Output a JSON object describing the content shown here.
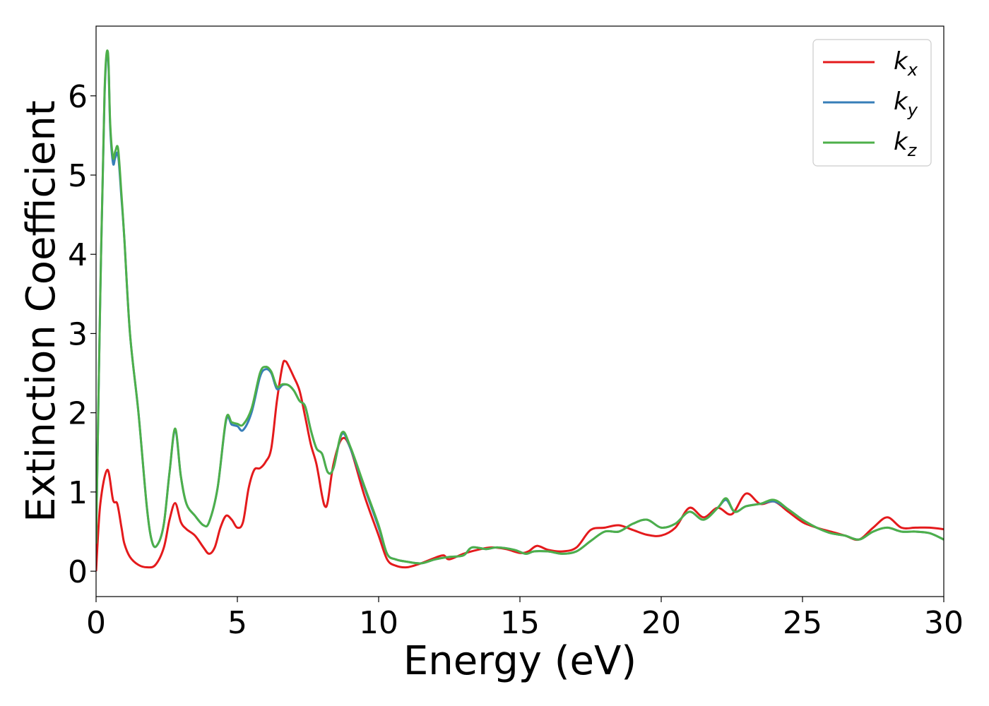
{
  "chart_data": {
    "type": "line",
    "xlabel": "Energy (eV)",
    "ylabel": "Extinction Coefficient",
    "xlim": [
      0,
      30
    ],
    "ylim": [
      -0.32,
      6.88
    ],
    "xticks": [
      0,
      5,
      10,
      15,
      20,
      25,
      30
    ],
    "yticks": [
      0,
      1,
      2,
      3,
      4,
      5,
      6
    ],
    "grid": false,
    "legend_position": "top-right",
    "series": [
      {
        "name": "k_x",
        "label_main": "k",
        "label_sub": "x",
        "color": "#e41a1c",
        "x": [
          0,
          0.15,
          0.4,
          0.6,
          0.75,
          0.9,
          1.0,
          1.2,
          1.5,
          1.8,
          2.1,
          2.4,
          2.6,
          2.8,
          3.0,
          3.2,
          3.5,
          3.8,
          4.0,
          4.2,
          4.4,
          4.6,
          4.8,
          5.0,
          5.2,
          5.4,
          5.6,
          5.8,
          6.0,
          6.2,
          6.4,
          6.6,
          6.7,
          6.8,
          7.0,
          7.2,
          7.4,
          7.6,
          7.8,
          8.0,
          8.1,
          8.2,
          8.4,
          8.7,
          9.0,
          9.5,
          10.0,
          10.3,
          10.6,
          11.0,
          11.5,
          12.0,
          12.3,
          12.5,
          13.0,
          13.5,
          14.0,
          14.5,
          15.0,
          15.3,
          15.6,
          16.0,
          16.5,
          17.0,
          17.5,
          18.0,
          18.5,
          19.0,
          19.5,
          20.0,
          20.5,
          21.0,
          21.5,
          22.0,
          22.5,
          23.0,
          23.5,
          24.0,
          24.5,
          25.0,
          25.5,
          26.0,
          26.5,
          27.0,
          27.5,
          28.0,
          28.5,
          29.0,
          29.5,
          30.0
        ],
        "y": [
          0.0,
          0.85,
          1.28,
          0.9,
          0.85,
          0.55,
          0.35,
          0.18,
          0.08,
          0.05,
          0.08,
          0.3,
          0.65,
          0.86,
          0.62,
          0.53,
          0.45,
          0.3,
          0.22,
          0.3,
          0.55,
          0.7,
          0.65,
          0.55,
          0.62,
          1.05,
          1.28,
          1.3,
          1.38,
          1.55,
          2.15,
          2.6,
          2.65,
          2.6,
          2.45,
          2.28,
          1.95,
          1.6,
          1.35,
          0.95,
          0.82,
          0.88,
          1.35,
          1.67,
          1.55,
          0.95,
          0.45,
          0.15,
          0.07,
          0.05,
          0.1,
          0.17,
          0.2,
          0.15,
          0.22,
          0.27,
          0.3,
          0.28,
          0.23,
          0.25,
          0.32,
          0.27,
          0.25,
          0.3,
          0.52,
          0.55,
          0.58,
          0.52,
          0.46,
          0.45,
          0.55,
          0.8,
          0.68,
          0.8,
          0.72,
          0.98,
          0.85,
          0.88,
          0.75,
          0.62,
          0.55,
          0.5,
          0.45,
          0.4,
          0.55,
          0.68,
          0.55,
          0.55,
          0.55,
          0.53
        ]
      },
      {
        "name": "k_y",
        "label_main": "k",
        "label_sub": "y",
        "color": "#377eb8",
        "x": [
          0,
          0.15,
          0.3,
          0.42,
          0.5,
          0.6,
          0.68,
          0.78,
          0.9,
          1.0,
          1.2,
          1.5,
          1.8,
          2.0,
          2.2,
          2.4,
          2.6,
          2.8,
          3.0,
          3.2,
          3.5,
          3.8,
          4.0,
          4.3,
          4.6,
          4.8,
          5.0,
          5.2,
          5.5,
          5.8,
          6.0,
          6.2,
          6.4,
          6.6,
          6.8,
          7.0,
          7.2,
          7.4,
          7.6,
          7.8,
          8.0,
          8.2,
          8.4,
          8.7,
          9.0,
          9.5,
          10.0,
          10.3,
          10.6,
          11.0,
          11.5,
          12.0,
          12.5,
          13.0,
          13.3,
          13.8,
          14.2,
          14.8,
          15.2,
          15.5,
          16.0,
          16.5,
          17.0,
          17.5,
          18.0,
          18.5,
          19.0,
          19.5,
          20.0,
          20.5,
          21.0,
          21.5,
          22.0,
          22.3,
          22.6,
          23.0,
          23.5,
          24.0,
          24.5,
          25.0,
          25.5,
          26.0,
          26.5,
          27.0,
          27.5,
          28.0,
          28.5,
          29.0,
          29.5,
          30.0
        ],
        "y": [
          0.35,
          3.5,
          6.0,
          6.52,
          5.6,
          5.15,
          5.22,
          5.25,
          4.7,
          4.2,
          3.0,
          2.0,
          0.8,
          0.35,
          0.35,
          0.6,
          1.25,
          1.78,
          1.2,
          0.85,
          0.7,
          0.58,
          0.62,
          1.05,
          1.9,
          1.85,
          1.83,
          1.78,
          2.0,
          2.45,
          2.55,
          2.5,
          2.3,
          2.35,
          2.35,
          2.28,
          2.15,
          2.08,
          1.78,
          1.55,
          1.48,
          1.25,
          1.3,
          1.73,
          1.55,
          1.05,
          0.55,
          0.22,
          0.15,
          0.12,
          0.1,
          0.15,
          0.18,
          0.2,
          0.3,
          0.28,
          0.3,
          0.27,
          0.22,
          0.25,
          0.25,
          0.22,
          0.25,
          0.38,
          0.5,
          0.5,
          0.6,
          0.65,
          0.55,
          0.6,
          0.75,
          0.65,
          0.8,
          0.9,
          0.75,
          0.82,
          0.85,
          0.88,
          0.78,
          0.65,
          0.55,
          0.48,
          0.45,
          0.4,
          0.5,
          0.55,
          0.5,
          0.5,
          0.48,
          0.4
        ]
      },
      {
        "name": "k_z",
        "label_main": "k",
        "label_sub": "z",
        "color": "#4daf4a",
        "x": [
          0,
          0.15,
          0.3,
          0.42,
          0.5,
          0.6,
          0.68,
          0.78,
          0.9,
          1.0,
          1.2,
          1.5,
          1.8,
          2.0,
          2.2,
          2.4,
          2.6,
          2.8,
          3.0,
          3.2,
          3.5,
          3.8,
          4.0,
          4.3,
          4.6,
          4.8,
          5.0,
          5.2,
          5.5,
          5.8,
          6.0,
          6.2,
          6.4,
          6.6,
          6.8,
          7.0,
          7.2,
          7.4,
          7.6,
          7.8,
          8.0,
          8.2,
          8.4,
          8.7,
          9.0,
          9.5,
          10.0,
          10.3,
          10.6,
          11.0,
          11.5,
          12.0,
          12.5,
          13.0,
          13.3,
          13.8,
          14.2,
          14.8,
          15.2,
          15.5,
          16.0,
          16.5,
          17.0,
          17.5,
          18.0,
          18.5,
          19.0,
          19.5,
          20.0,
          20.5,
          21.0,
          21.5,
          22.0,
          22.3,
          22.6,
          23.0,
          23.5,
          24.0,
          24.5,
          25.0,
          25.5,
          26.0,
          26.5,
          27.0,
          27.5,
          28.0,
          28.5,
          29.0,
          29.5,
          30.0
        ],
        "y": [
          0.35,
          3.5,
          6.05,
          6.55,
          5.65,
          5.22,
          5.3,
          5.33,
          4.75,
          4.2,
          3.0,
          2.0,
          0.8,
          0.35,
          0.35,
          0.6,
          1.25,
          1.8,
          1.2,
          0.85,
          0.7,
          0.58,
          0.62,
          1.05,
          1.92,
          1.88,
          1.86,
          1.85,
          2.05,
          2.5,
          2.58,
          2.52,
          2.33,
          2.36,
          2.35,
          2.28,
          2.15,
          2.08,
          1.78,
          1.55,
          1.48,
          1.25,
          1.3,
          1.75,
          1.57,
          1.07,
          0.58,
          0.22,
          0.15,
          0.12,
          0.1,
          0.15,
          0.18,
          0.2,
          0.3,
          0.28,
          0.3,
          0.27,
          0.22,
          0.25,
          0.25,
          0.22,
          0.25,
          0.38,
          0.5,
          0.5,
          0.6,
          0.65,
          0.55,
          0.6,
          0.75,
          0.65,
          0.8,
          0.92,
          0.75,
          0.82,
          0.85,
          0.9,
          0.78,
          0.65,
          0.55,
          0.48,
          0.45,
          0.4,
          0.5,
          0.55,
          0.5,
          0.5,
          0.48,
          0.4
        ]
      }
    ]
  }
}
